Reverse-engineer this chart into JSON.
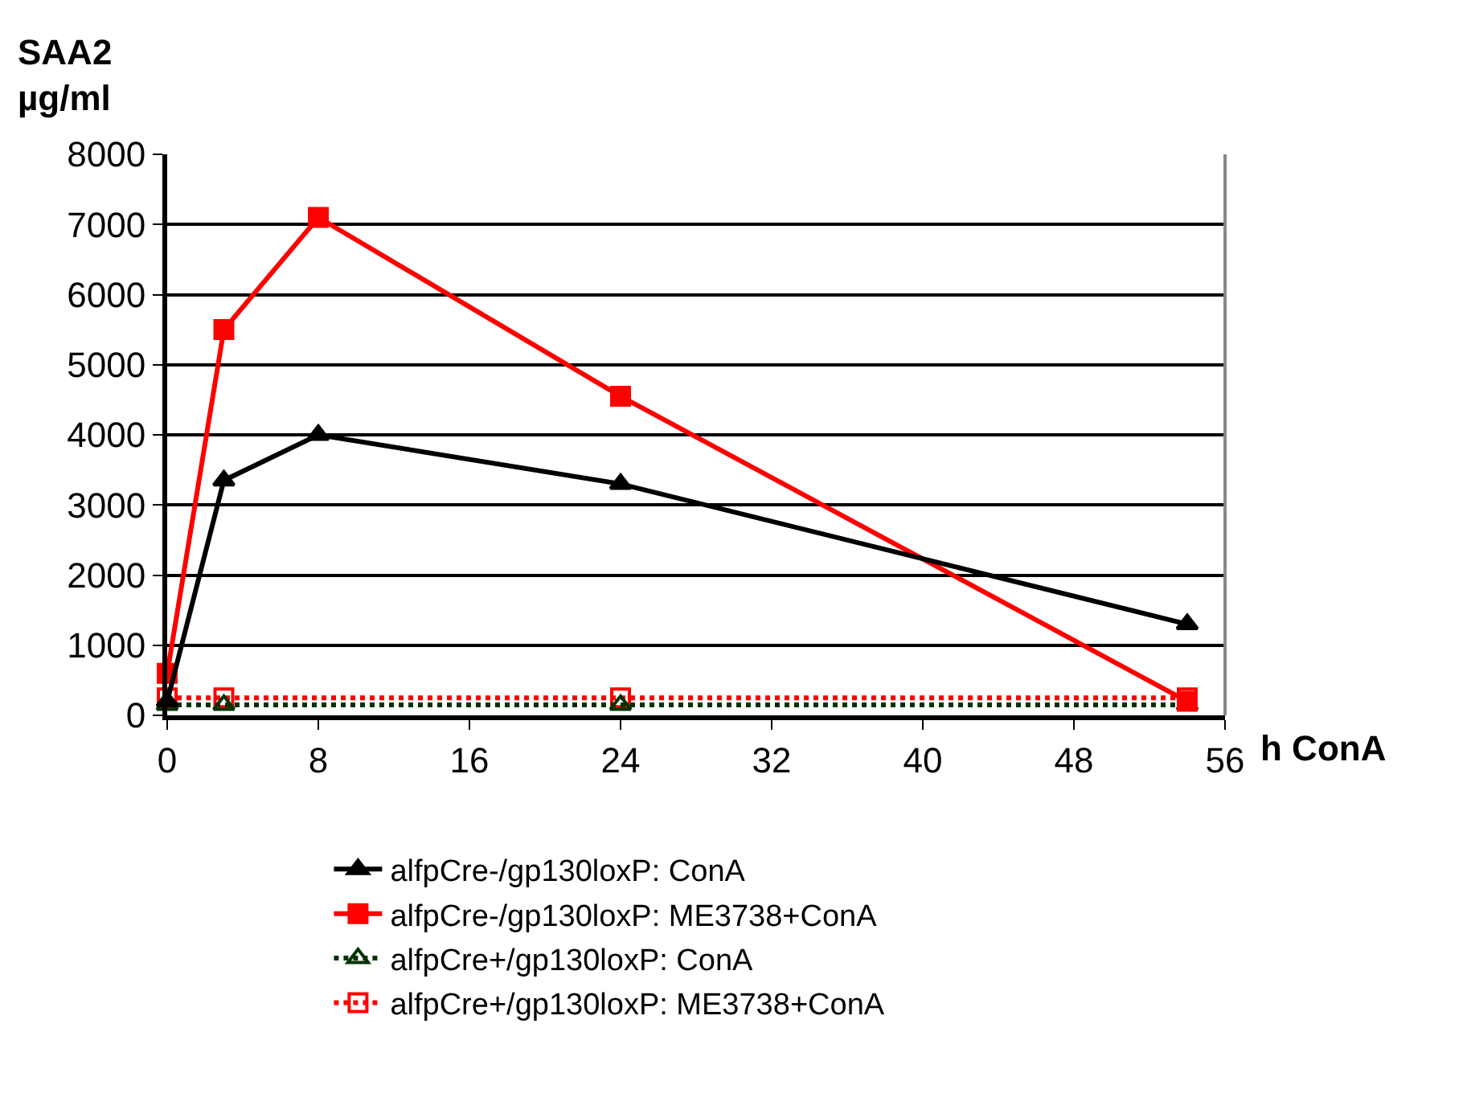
{
  "chart_data": {
    "type": "line",
    "xlabel": "h ConA",
    "ylabel": "SAA2\nµg/ml",
    "xlim": [
      0,
      56
    ],
    "xticks": [
      0,
      8,
      16,
      24,
      32,
      40,
      48,
      56
    ],
    "ylim": [
      0,
      8000
    ],
    "yticks": [
      0,
      1000,
      2000,
      3000,
      4000,
      5000,
      6000,
      7000,
      8000
    ],
    "grid": "y",
    "legend": "bottom",
    "series": [
      {
        "name": "alfpCre-/gp130loxP: ConA",
        "color": "#000000",
        "x": [
          0,
          3,
          8,
          24,
          54
        ],
        "values": [
          200,
          3350,
          4000,
          3300,
          1300
        ],
        "marker": "triangle",
        "line_style": "solid"
      },
      {
        "name": "alfpCre-/gp130loxP: ME3738+ConA",
        "color": "#ff0000",
        "x": [
          0,
          3,
          8,
          24,
          54
        ],
        "values": [
          600,
          5500,
          7100,
          4550,
          200
        ],
        "marker": "square",
        "line_style": "solid"
      },
      {
        "name": "alfpCre+/gp130loxP: ConA",
        "color": "#003300",
        "x": [
          0,
          3,
          24,
          54
        ],
        "values": [
          150,
          150,
          150,
          150
        ],
        "marker": "triangle",
        "line_style": "dotted"
      },
      {
        "name": "alfpCre+/gp130loxP: ME3738+ConA",
        "color": "#ff0000",
        "x": [
          0,
          3,
          24,
          54
        ],
        "values": [
          250,
          250,
          250,
          250
        ],
        "marker": "square",
        "line_style": "dotted"
      }
    ]
  }
}
